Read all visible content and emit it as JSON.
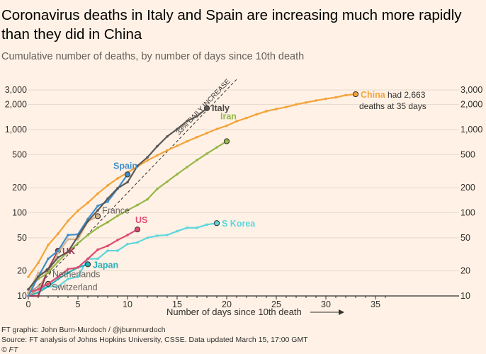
{
  "title": "Coronavirus deaths in Italy and Spain are increasing much more rapidly than they did in China",
  "subtitle": "Cumulative number of deaths, by number of days since 10th death",
  "footer": {
    "graphic": "FT graphic: John Burn-Murdoch / @jburnmurdoch",
    "source": "Source: FT analysis of Johns Hopkins University, CSSE. Data updated March 15, 17:00 GMT",
    "copyright": "© FT"
  },
  "chart_data": {
    "type": "line",
    "scale": "log",
    "xlabel": "Number of days since 10th death",
    "xlim": [
      0,
      36
    ],
    "ylim": [
      10,
      3000
    ],
    "x_ticks": [
      0,
      5,
      10,
      15,
      20,
      25,
      30,
      35
    ],
    "y_ticks": [
      {
        "value": 10,
        "label": "10"
      },
      {
        "value": 20,
        "label": "20"
      },
      {
        "value": 50,
        "label": "50"
      },
      {
        "value": 100,
        "label": "100"
      },
      {
        "value": 200,
        "label": "200"
      },
      {
        "value": 500,
        "label": "500"
      },
      {
        "value": 1000,
        "label": "1,000"
      },
      {
        "value": 2000,
        "label": "2,000"
      },
      {
        "value": 3000,
        "label": "3,000"
      }
    ],
    "reference_line": {
      "label": "33% DAILY INCREASE",
      "x": [
        0,
        21
      ],
      "y": [
        10,
        4020
      ]
    },
    "series": [
      {
        "name": "China",
        "label": "China",
        "note1": "had 2,663",
        "note2": "deaths at 35 days",
        "color": "#f2a43b",
        "values": [
          17,
          25,
          41,
          56,
          80,
          106,
          132,
          170,
          213,
          259,
          304,
          361,
          425,
          490,
          563,
          637,
          722,
          811,
          908,
          1016,
          1113,
          1259,
          1380,
          1523,
          1665,
          1770,
          1868,
          2004,
          2118,
          2236,
          2345,
          2442,
          2592,
          2663
        ]
      },
      {
        "name": "Italy",
        "label": "Italy",
        "color": "#5b5855",
        "values": [
          12,
          17,
          21,
          29,
          34,
          52,
          79,
          107,
          148,
          197,
          233,
          366,
          463,
          631,
          827,
          1016,
          1266,
          1441,
          1809
        ]
      },
      {
        "name": "Iran",
        "label": "Iran",
        "color": "#95b748",
        "values": [
          12,
          16,
          19,
          26,
          34,
          43,
          54,
          66,
          77,
          92,
          107,
          124,
          145,
          194,
          237,
          291,
          354,
          429,
          514,
          611,
          724
        ]
      },
      {
        "name": "Spain",
        "label": "Spain",
        "color": "#3f8ec9",
        "values": [
          10,
          17,
          28,
          35,
          54,
          55,
          84,
          121,
          136,
          195,
          289
        ]
      },
      {
        "name": "France",
        "label": "France",
        "color": "#d6b48e",
        "values": [
          11,
          19,
          19,
          33,
          48,
          48,
          79,
          91
        ]
      },
      {
        "name": "UK",
        "label": "UK",
        "color": "#a03553",
        "values": [
          10,
          10,
          21,
          35
        ]
      },
      {
        "name": "US",
        "label": "US",
        "color": "#df4a73",
        "values": [
          11,
          12,
          14,
          17,
          21,
          22,
          28,
          36,
          40,
          47,
          54,
          63
        ]
      },
      {
        "name": "Netherlands",
        "label": "Netherlands",
        "color": "#c7a58a",
        "values": [
          10,
          12,
          20
        ]
      },
      {
        "name": "Switzerland",
        "label": "Switzerland",
        "color": "#b8a598",
        "values": [
          11,
          13,
          14
        ]
      },
      {
        "name": "Japan",
        "label": "Japan",
        "color": "#27b0b8",
        "values": [
          10,
          11,
          13,
          16,
          19,
          22,
          24
        ]
      },
      {
        "name": "S Korea",
        "label": "S Korea",
        "color": "#5ed6dd",
        "values": [
          11,
          12,
          13,
          13,
          16,
          17,
          28,
          28,
          35,
          35,
          42,
          44,
          50,
          53,
          54,
          60,
          66,
          66,
          72,
          75
        ]
      }
    ]
  }
}
